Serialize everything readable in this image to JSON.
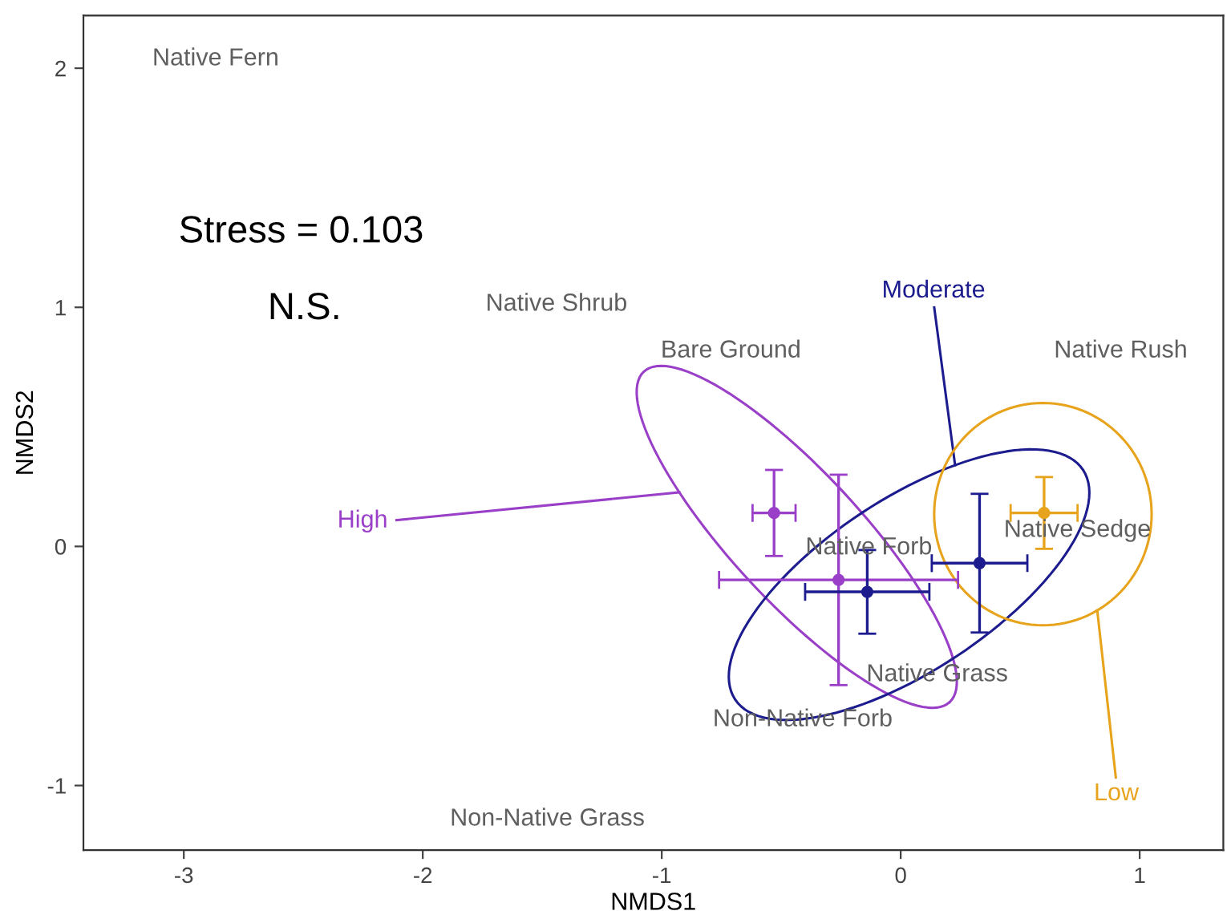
{
  "chart_data": {
    "type": "scatter",
    "xlabel": "NMDS1",
    "ylabel": "NMDS2",
    "xlim": [
      -3.42,
      1.35
    ],
    "ylim": [
      -1.27,
      2.22
    ],
    "xticks": [
      -3,
      -2,
      -1,
      0,
      1
    ],
    "yticks": [
      -1,
      0,
      1,
      2
    ],
    "marker": "circle",
    "series": [
      {
        "name": "High",
        "color": "#9a3fc8",
        "x": [
          -0.53,
          -0.26
        ],
        "values": [
          0.14,
          -0.14
        ],
        "errors": [
          0.18,
          0.44
        ],
        "xerrors": [
          0.09,
          0.5
        ]
      },
      {
        "name": "Moderate",
        "color": "#1c1c8f",
        "x": [
          -0.14,
          0.33
        ],
        "values": [
          -0.19,
          -0.07
        ],
        "errors": [
          0.175,
          0.29
        ],
        "xerrors": [
          0.26,
          0.2
        ]
      },
      {
        "name": "Low",
        "color": "#e8a31c",
        "x": [
          0.6
        ],
        "values": [
          0.14
        ],
        "errors": [
          0.15
        ],
        "xerrors": [
          0.14
        ]
      }
    ],
    "annotations": [
      "Stress = 0.103",
      "N.S.",
      "Native Fern",
      "Native Shrub",
      "Bare Ground",
      "Native Rush",
      "Native Sedge",
      "Native Forb",
      "Native Grass",
      "Non-Native Forb",
      "Non-Native Grass"
    ]
  }
}
